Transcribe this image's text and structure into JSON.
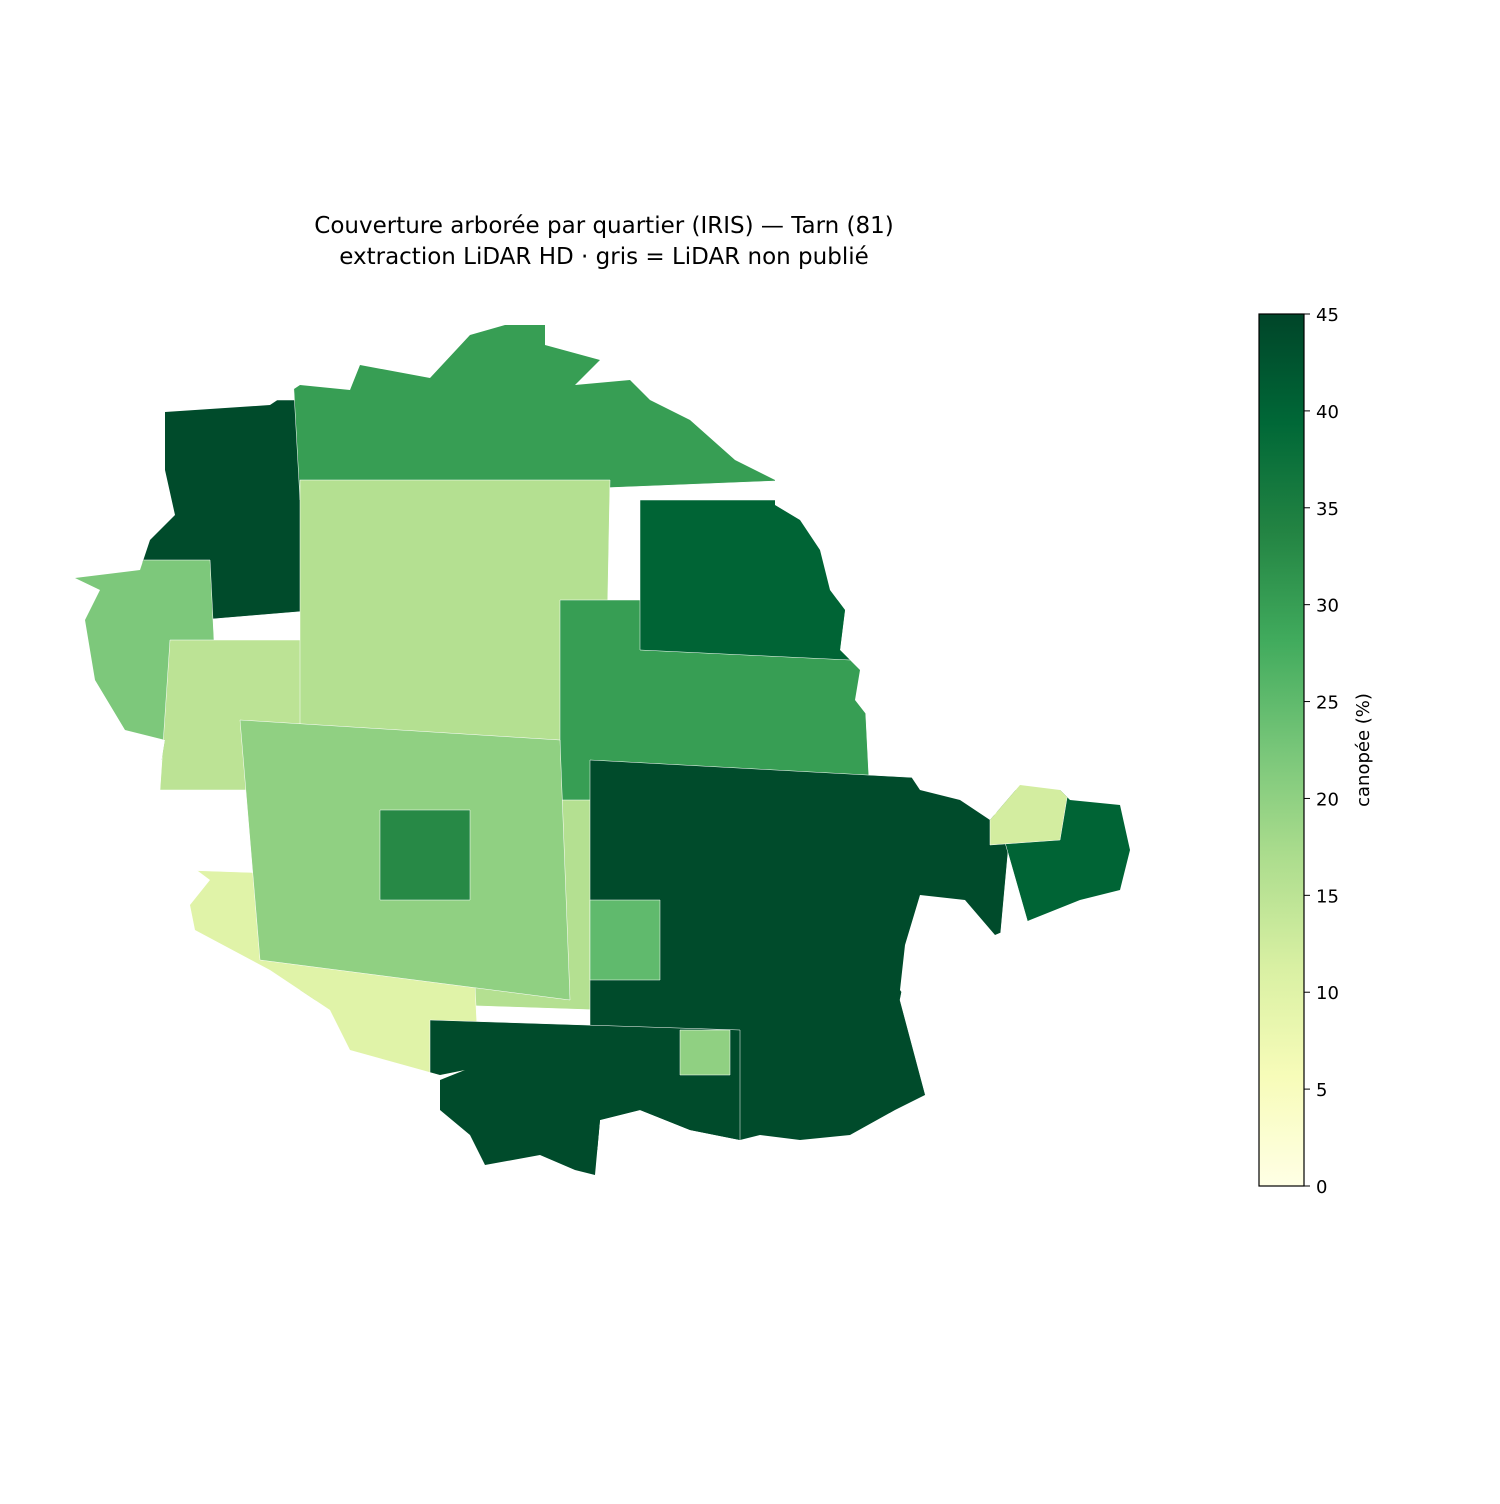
{
  "chart_data": {
    "type": "choropleth",
    "title": "Couverture arborée par quartier (IRIS) — Tarn (81)",
    "subtitle": "extraction LiDAR HD · gris = LiDAR non publié",
    "values": [
      44,
      22,
      15,
      30,
      16,
      30,
      44,
      40,
      10,
      44,
      40,
      20,
      25,
      20,
      12,
      33
    ],
    "colorbar": {
      "label": "canopée (%)",
      "lim": [
        0,
        45
      ],
      "ticks": [
        0,
        5,
        10,
        15,
        20,
        25,
        30,
        35,
        40,
        45
      ],
      "colors": [
        "#ffffe5",
        "#f7fcb9",
        "#d9f0a3",
        "#addd8e",
        "#78c679",
        "#41ab5d",
        "#238443",
        "#006837",
        "#004529"
      ]
    }
  }
}
